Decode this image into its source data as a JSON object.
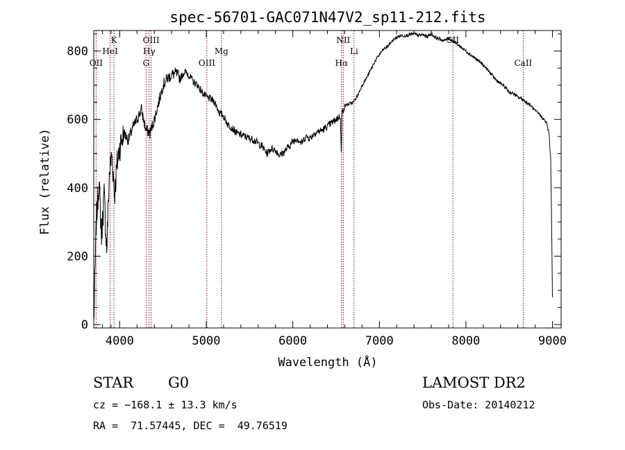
{
  "chart_data": {
    "type": "line",
    "title": "spec-56701-GAC071N47V2_sp11-212.fits",
    "xlabel": "Wavelength (Å)",
    "ylabel": "Flux (relative)",
    "xlim": [
      3700,
      9100
    ],
    "ylim": [
      -10,
      860
    ],
    "xticks": [
      4000,
      5000,
      6000,
      7000,
      8000,
      9000
    ],
    "yticks": [
      0,
      200,
      400,
      600,
      800
    ],
    "grid": false,
    "series": [
      {
        "x": [
          3700,
          3730,
          3760,
          3790,
          3820,
          3850,
          3880,
          3910,
          3940,
          3970,
          4000,
          4050,
          4100,
          4150,
          4200,
          4250,
          4300,
          4350,
          4400,
          4450,
          4500,
          4550,
          4600,
          4650,
          4700,
          4750,
          4800,
          4850,
          4900,
          4950,
          5000,
          5050,
          5100,
          5150,
          5200,
          5250,
          5300,
          5350,
          5400,
          5450,
          5500,
          5550,
          5600,
          5650,
          5700,
          5750,
          5800,
          5850,
          5900,
          5950,
          6000,
          6050,
          6100,
          6150,
          6200,
          6250,
          6300,
          6350,
          6400,
          6450,
          6500,
          6550,
          6560,
          6570,
          6600,
          6650,
          6700,
          6750,
          6800,
          6850,
          6900,
          6950,
          7000,
          7050,
          7100,
          7150,
          7200,
          7250,
          7300,
          7350,
          7400,
          7450,
          7500,
          7550,
          7600,
          7650,
          7700,
          7750,
          7800,
          7850,
          7900,
          7950,
          8000,
          8050,
          8100,
          8150,
          8200,
          8250,
          8300,
          8350,
          8400,
          8450,
          8500,
          8550,
          8600,
          8650,
          8700,
          8750,
          8800,
          8850,
          8900,
          8930,
          8960,
          8980,
          8990,
          9000
        ],
        "y": [
          5,
          300,
          420,
          260,
          380,
          220,
          440,
          500,
          380,
          470,
          520,
          560,
          540,
          575,
          600,
          630,
          570,
          560,
          600,
          650,
          700,
          720,
          730,
          735,
          720,
          740,
          730,
          710,
          700,
          680,
          665,
          660,
          650,
          620,
          610,
          585,
          575,
          560,
          555,
          550,
          545,
          540,
          530,
          520,
          500,
          515,
          510,
          495,
          505,
          520,
          535,
          545,
          530,
          550,
          545,
          560,
          565,
          570,
          580,
          590,
          600,
          610,
          500,
          620,
          640,
          645,
          650,
          670,
          700,
          720,
          745,
          770,
          790,
          805,
          815,
          830,
          840,
          845,
          845,
          848,
          850,
          845,
          848,
          842,
          850,
          840,
          835,
          830,
          838,
          830,
          820,
          810,
          800,
          790,
          780,
          770,
          760,
          745,
          730,
          715,
          705,
          695,
          680,
          675,
          665,
          660,
          650,
          640,
          625,
          615,
          600,
          590,
          560,
          480,
          300,
          80
        ]
      }
    ],
    "line_markers": [
      {
        "label": "OII",
        "x": 3727,
        "row": 3
      },
      {
        "label": "K",
        "x": 3934,
        "row": 1
      },
      {
        "label": "HeI",
        "x": 3889,
        "row": 2
      },
      {
        "label": "OIII",
        "x": 4363,
        "row": 1
      },
      {
        "label": "Hγ",
        "x": 4340,
        "row": 2
      },
      {
        "label": "G",
        "x": 4305,
        "row": 3
      },
      {
        "label": "OIII",
        "x": 5007,
        "row": 3
      },
      {
        "label": "Mg",
        "x": 5175,
        "row": 2
      },
      {
        "label": "NII",
        "x": 6583,
        "row": 1
      },
      {
        "label": "Hα",
        "x": 6563,
        "row": 3
      },
      {
        "label": "Li",
        "x": 6708,
        "row": 2
      },
      {
        "label": "SII",
        "x": 7850,
        "row": 1
      },
      {
        "label": "CaII",
        "x": 8662,
        "row": 3
      }
    ]
  },
  "info": {
    "object_type": "STAR",
    "subclass": "G0",
    "survey": "LAMOST DR2",
    "redshift": "cz = −168.1 ± 13.3 km/s",
    "obs_date": "Obs-Date: 20140212",
    "coords": "RA =  71.57445, DEC =  49.76519"
  },
  "colors": {
    "marker_line": "#8b0000",
    "spectrum": "#000000",
    "axis": "#000000"
  }
}
